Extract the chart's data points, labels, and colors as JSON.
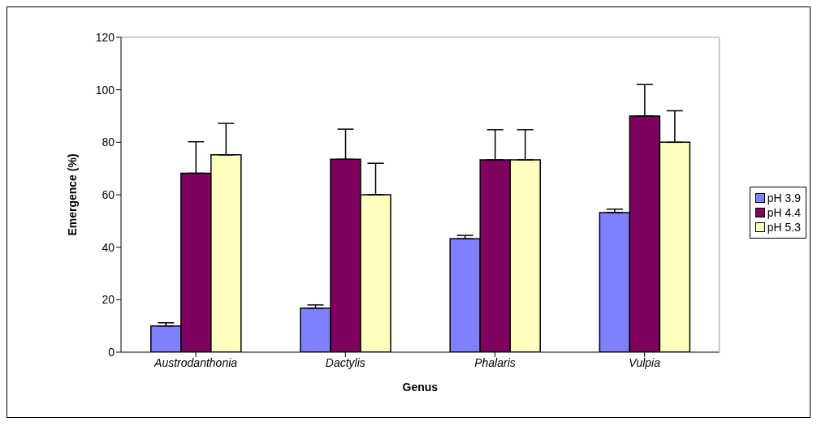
{
  "chart_data": {
    "type": "bar",
    "xlabel": "Genus",
    "ylabel": "Emergence (%)",
    "categories": [
      "Austrodanthonia",
      "Dactylis",
      "Phalaris",
      "Vulpia"
    ],
    "series": [
      {
        "name": "pH 3.9",
        "color": "#8080ff",
        "values": [
          10,
          16.8,
          43.2,
          53.2
        ],
        "errors": [
          [
            10,
            11.2
          ],
          [
            16.8,
            18
          ],
          [
            43.2,
            44.5
          ],
          [
            53.2,
            54.5
          ]
        ]
      },
      {
        "name": "pH 4.4",
        "color": "#800060",
        "values": [
          68.2,
          73.5,
          73.3,
          90
        ],
        "errors": [
          [
            68.2,
            80.2
          ],
          [
            73.5,
            85
          ],
          [
            73.3,
            84.8
          ],
          [
            90,
            102
          ]
        ]
      },
      {
        "name": "pH 5.3",
        "color": "#ffffc0",
        "values": [
          75.2,
          60,
          73.3,
          80
        ],
        "errors": [
          [
            75.2,
            87.2
          ],
          [
            60,
            72
          ],
          [
            73.3,
            84.8
          ],
          [
            80,
            92
          ]
        ]
      }
    ],
    "ylim": [
      0,
      120
    ],
    "yticks": [
      0,
      20,
      40,
      60,
      80,
      100,
      120
    ],
    "grid": false,
    "legend": "right"
  }
}
